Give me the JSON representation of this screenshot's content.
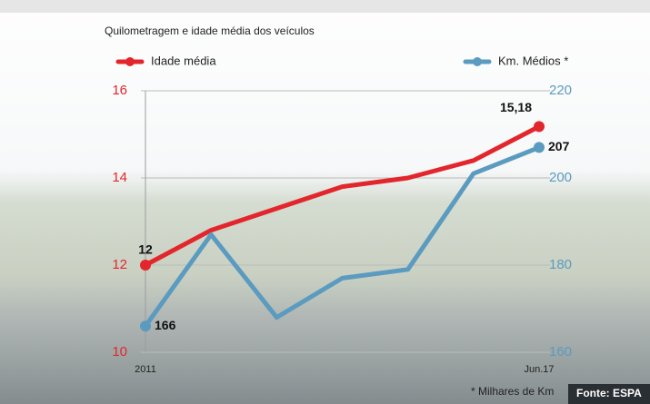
{
  "chart_data": {
    "type": "line",
    "title": "Quilometragem e idade média dos veículos",
    "categories": [
      "2011",
      null,
      null,
      null,
      null,
      null,
      "Jun.17"
    ],
    "series": [
      {
        "name": "Idade média",
        "color": "#e3262b",
        "values": [
          12,
          12.8,
          13.3,
          13.8,
          14,
          14.4,
          15.18
        ],
        "value_labels": [
          "12",
          null,
          null,
          null,
          null,
          null,
          "15,18"
        ]
      },
      {
        "name": "Km. Médios *",
        "color": "#5b9bbf",
        "axis": "y2",
        "values": [
          166,
          187,
          168,
          177,
          179,
          201,
          207
        ],
        "value_labels": [
          "166",
          null,
          null,
          null,
          null,
          null,
          "207"
        ]
      }
    ],
    "ylim": [
      10,
      16
    ],
    "yticks": [
      10,
      12,
      14,
      16
    ],
    "y2lim": [
      160,
      220
    ],
    "y2ticks": [
      160,
      180,
      200,
      220
    ],
    "grid": true,
    "footnote": "* Milhares de Km",
    "source": "Fonte: ESPA"
  }
}
